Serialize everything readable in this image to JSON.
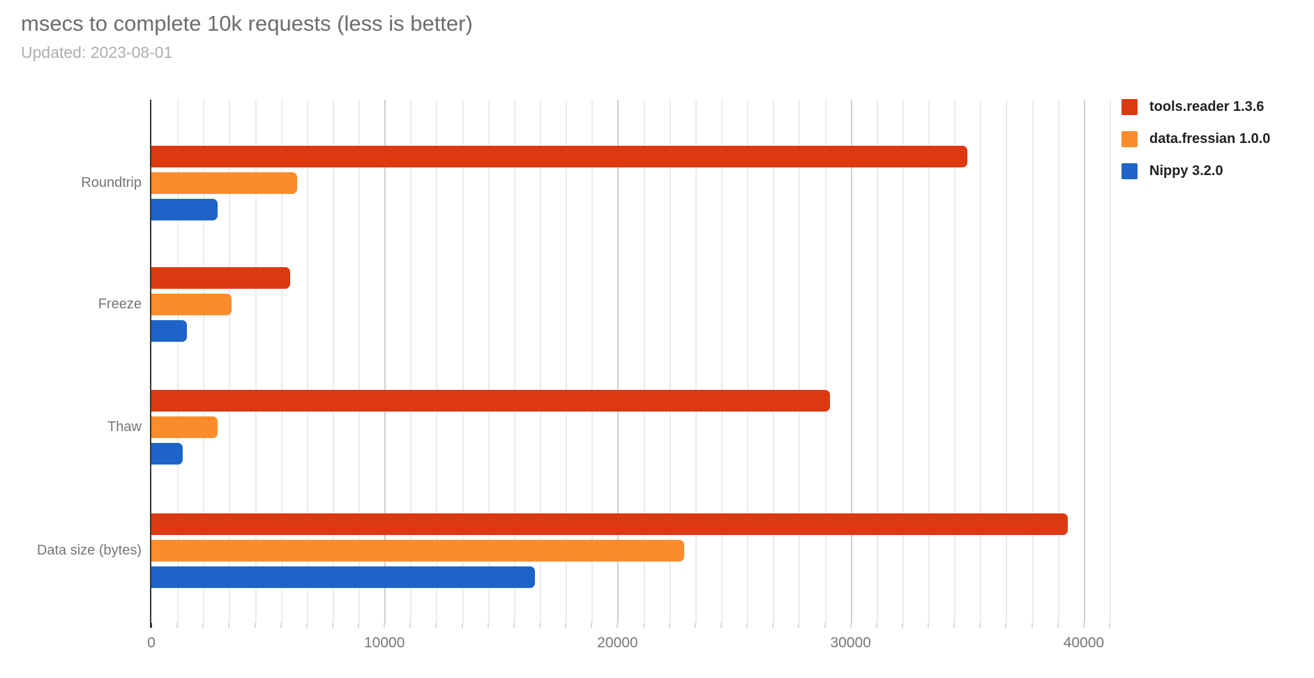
{
  "chart_data": {
    "type": "bar",
    "orientation": "horizontal",
    "title": "msecs to complete 10k requests (less is better)",
    "subtitle": "Updated: 2023-08-01",
    "categories": [
      "Roundtrip",
      "Freeze",
      "Thaw",
      "Data size (bytes)"
    ],
    "series": [
      {
        "name": "tools.reader 1.3.6",
        "color": "#dc3912",
        "values": [
          35000,
          5950,
          29100,
          39330
        ]
      },
      {
        "name": "data.fressian 1.0.0",
        "color": "#fb8c2c",
        "values": [
          6250,
          3430,
          2850,
          22870
        ]
      },
      {
        "name": "Nippy 3.2.0",
        "color": "#1e64c8",
        "values": [
          2850,
          1520,
          1340,
          16450
        ]
      }
    ],
    "xlabel": "",
    "ylabel": "",
    "x_tick_labels": [
      "0",
      "10000",
      "20000",
      "30000",
      "40000"
    ],
    "x_tick_values": [
      0,
      10000,
      20000,
      30000,
      40000
    ],
    "xlim": [
      0,
      41111
    ],
    "minor_intervals_per_major": 9,
    "grid": true,
    "legend_position": "right",
    "background_color": "#ffffff",
    "title_color": "#6c6c6c",
    "subtitle_color": "#aeaeae",
    "axis_text_color": "#757575"
  }
}
